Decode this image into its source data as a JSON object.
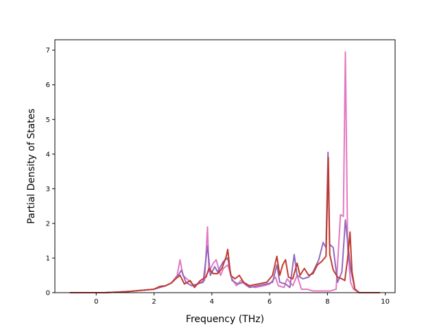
{
  "chart_data": {
    "type": "line",
    "title": "",
    "xlabel": "Frequency (THz)",
    "ylabel": "Partial Density of States",
    "xlim": [
      -1.43,
      10.34
    ],
    "ylim": [
      0,
      7.3
    ],
    "xticks": [
      0,
      2,
      4,
      6,
      8,
      10
    ],
    "yticks": [
      0,
      1,
      2,
      3,
      4,
      5,
      6,
      7
    ],
    "grid": false,
    "legend": "none",
    "series": [
      {
        "color": "#e377c2",
        "points": [
          [
            -0.9,
            0
          ],
          [
            0.3,
            0
          ],
          [
            0.8,
            0.02
          ],
          [
            1.2,
            0.04
          ],
          [
            1.6,
            0.07
          ],
          [
            2.0,
            0.1
          ],
          [
            2.2,
            0.15
          ],
          [
            2.4,
            0.2
          ],
          [
            2.6,
            0.28
          ],
          [
            2.8,
            0.5
          ],
          [
            2.9,
            0.95
          ],
          [
            3.0,
            0.5
          ],
          [
            3.2,
            0.35
          ],
          [
            3.4,
            0.2
          ],
          [
            3.6,
            0.3
          ],
          [
            3.75,
            0.35
          ],
          [
            3.85,
            1.9
          ],
          [
            3.9,
            0.6
          ],
          [
            4.05,
            0.85
          ],
          [
            4.15,
            0.95
          ],
          [
            4.3,
            0.5
          ],
          [
            4.4,
            0.7
          ],
          [
            4.55,
            0.8
          ],
          [
            4.7,
            0.4
          ],
          [
            4.85,
            0.2
          ],
          [
            5.0,
            0.35
          ],
          [
            5.2,
            0.2
          ],
          [
            5.5,
            0.15
          ],
          [
            5.8,
            0.2
          ],
          [
            6.0,
            0.25
          ],
          [
            6.2,
            0.45
          ],
          [
            6.3,
            0.2
          ],
          [
            6.5,
            0.15
          ],
          [
            6.6,
            0.4
          ],
          [
            6.8,
            0.2
          ],
          [
            6.95,
            0.5
          ],
          [
            7.1,
            0.1
          ],
          [
            7.3,
            0.1
          ],
          [
            7.5,
            0.05
          ],
          [
            7.7,
            0.05
          ],
          [
            7.9,
            0.05
          ],
          [
            8.0,
            0.05
          ],
          [
            8.1,
            0.05
          ],
          [
            8.3,
            0.1
          ],
          [
            8.45,
            2.25
          ],
          [
            8.55,
            2.2
          ],
          [
            8.62,
            6.95
          ],
          [
            8.7,
            1.3
          ],
          [
            8.8,
            0.3
          ],
          [
            8.9,
            0.1
          ],
          [
            9.1,
            0
          ],
          [
            9.8,
            0
          ]
        ]
      },
      {
        "color": "#9467bd",
        "points": [
          [
            -0.9,
            0
          ],
          [
            0.3,
            0
          ],
          [
            0.8,
            0.02
          ],
          [
            1.2,
            0.04
          ],
          [
            1.6,
            0.07
          ],
          [
            2.0,
            0.1
          ],
          [
            2.2,
            0.15
          ],
          [
            2.4,
            0.2
          ],
          [
            2.6,
            0.28
          ],
          [
            2.8,
            0.45
          ],
          [
            2.95,
            0.65
          ],
          [
            3.1,
            0.3
          ],
          [
            3.3,
            0.2
          ],
          [
            3.5,
            0.25
          ],
          [
            3.7,
            0.3
          ],
          [
            3.85,
            1.35
          ],
          [
            3.95,
            0.5
          ],
          [
            4.1,
            0.75
          ],
          [
            4.2,
            0.6
          ],
          [
            4.4,
            0.9
          ],
          [
            4.55,
            1.0
          ],
          [
            4.7,
            0.35
          ],
          [
            4.9,
            0.25
          ],
          [
            5.1,
            0.3
          ],
          [
            5.3,
            0.15
          ],
          [
            5.6,
            0.2
          ],
          [
            5.9,
            0.25
          ],
          [
            6.1,
            0.3
          ],
          [
            6.25,
            0.8
          ],
          [
            6.35,
            0.3
          ],
          [
            6.55,
            0.25
          ],
          [
            6.7,
            0.15
          ],
          [
            6.85,
            1.1
          ],
          [
            6.95,
            0.5
          ],
          [
            7.15,
            0.4
          ],
          [
            7.35,
            0.45
          ],
          [
            7.5,
            0.6
          ],
          [
            7.7,
            0.95
          ],
          [
            7.85,
            1.45
          ],
          [
            7.95,
            1.3
          ],
          [
            8.02,
            4.05
          ],
          [
            8.07,
            1.4
          ],
          [
            8.2,
            1.3
          ],
          [
            8.35,
            0.3
          ],
          [
            8.5,
            0.6
          ],
          [
            8.62,
            2.1
          ],
          [
            8.7,
            1.45
          ],
          [
            8.8,
            0.7
          ],
          [
            8.95,
            0.1
          ],
          [
            9.1,
            0
          ],
          [
            9.8,
            0
          ]
        ]
      },
      {
        "color": "#c0392b",
        "points": [
          [
            -0.9,
            0
          ],
          [
            0.3,
            0
          ],
          [
            0.8,
            0.02
          ],
          [
            1.2,
            0.04
          ],
          [
            1.6,
            0.07
          ],
          [
            2.0,
            0.1
          ],
          [
            2.2,
            0.18
          ],
          [
            2.4,
            0.2
          ],
          [
            2.6,
            0.28
          ],
          [
            2.75,
            0.4
          ],
          [
            2.9,
            0.5
          ],
          [
            3.05,
            0.25
          ],
          [
            3.25,
            0.35
          ],
          [
            3.4,
            0.15
          ],
          [
            3.6,
            0.35
          ],
          [
            3.8,
            0.45
          ],
          [
            3.9,
            0.7
          ],
          [
            4.05,
            0.55
          ],
          [
            4.2,
            0.55
          ],
          [
            4.35,
            0.7
          ],
          [
            4.5,
            1.05
          ],
          [
            4.55,
            1.25
          ],
          [
            4.65,
            0.5
          ],
          [
            4.8,
            0.4
          ],
          [
            4.95,
            0.5
          ],
          [
            5.1,
            0.3
          ],
          [
            5.3,
            0.2
          ],
          [
            5.6,
            0.25
          ],
          [
            5.9,
            0.3
          ],
          [
            6.1,
            0.5
          ],
          [
            6.25,
            1.05
          ],
          [
            6.35,
            0.5
          ],
          [
            6.45,
            0.8
          ],
          [
            6.55,
            0.95
          ],
          [
            6.65,
            0.45
          ],
          [
            6.8,
            0.4
          ],
          [
            6.95,
            0.85
          ],
          [
            7.05,
            0.5
          ],
          [
            7.2,
            0.7
          ],
          [
            7.35,
            0.5
          ],
          [
            7.5,
            0.55
          ],
          [
            7.65,
            0.8
          ],
          [
            7.8,
            0.9
          ],
          [
            7.95,
            1.05
          ],
          [
            8.03,
            3.9
          ],
          [
            8.08,
            1.1
          ],
          [
            8.2,
            0.65
          ],
          [
            8.35,
            0.45
          ],
          [
            8.5,
            0.4
          ],
          [
            8.6,
            0.35
          ],
          [
            8.7,
            1.0
          ],
          [
            8.78,
            1.75
          ],
          [
            8.85,
            0.6
          ],
          [
            8.95,
            0.1
          ],
          [
            9.1,
            0
          ],
          [
            9.8,
            0
          ]
        ]
      }
    ]
  }
}
